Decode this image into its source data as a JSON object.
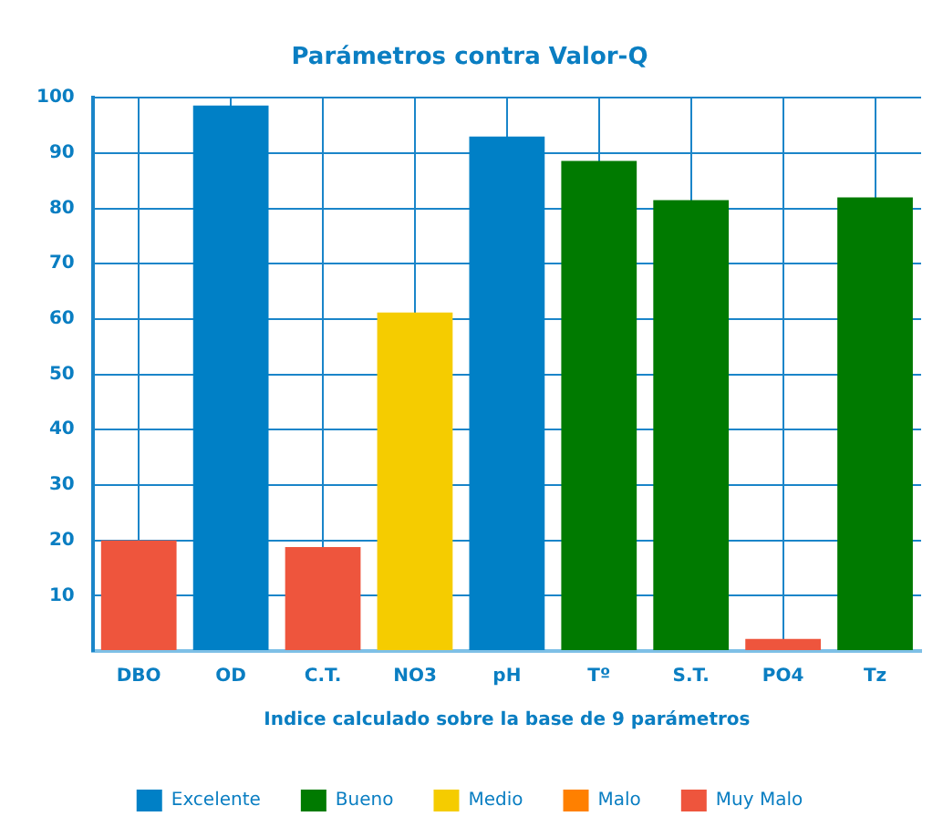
{
  "chart_data": {
    "type": "bar",
    "title": "Parámetros contra Valor-Q",
    "xlabel": "Indice calculado sobre la base de 9 parámetros",
    "categories": [
      "DBO",
      "OD",
      "C.T.",
      "NO3",
      "pH",
      "Tº",
      "S.T.",
      "PO4",
      "Tz"
    ],
    "stacked": true,
    "series": [
      {
        "name": "Excelente",
        "color": "#0080c6",
        "values": [
          null,
          98.6,
          null,
          null,
          93,
          null,
          null,
          null,
          null
        ]
      },
      {
        "name": "Bueno",
        "color": "#007a00",
        "values": [
          null,
          null,
          null,
          null,
          null,
          88.6,
          81.5,
          null,
          82
        ]
      },
      {
        "name": "Medio",
        "color": "#f5cc00",
        "values": [
          null,
          null,
          null,
          61.2,
          null,
          null,
          null,
          null,
          null
        ]
      },
      {
        "name": "Malo",
        "color": "#ff8000",
        "values": [
          null,
          null,
          null,
          null,
          null,
          null,
          null,
          null,
          null
        ]
      },
      {
        "name": "Muy Malo",
        "color": "#ee553d",
        "values": [
          20,
          null,
          18.8,
          null,
          null,
          null,
          null,
          2.2,
          null
        ]
      }
    ],
    "ylim": [
      0,
      100
    ],
    "yticks": [
      {
        "value": 0,
        "label": null
      },
      10,
      20,
      30,
      40,
      50,
      60,
      70,
      80,
      90,
      100
    ],
    "grid": true,
    "legend": "bottom"
  }
}
